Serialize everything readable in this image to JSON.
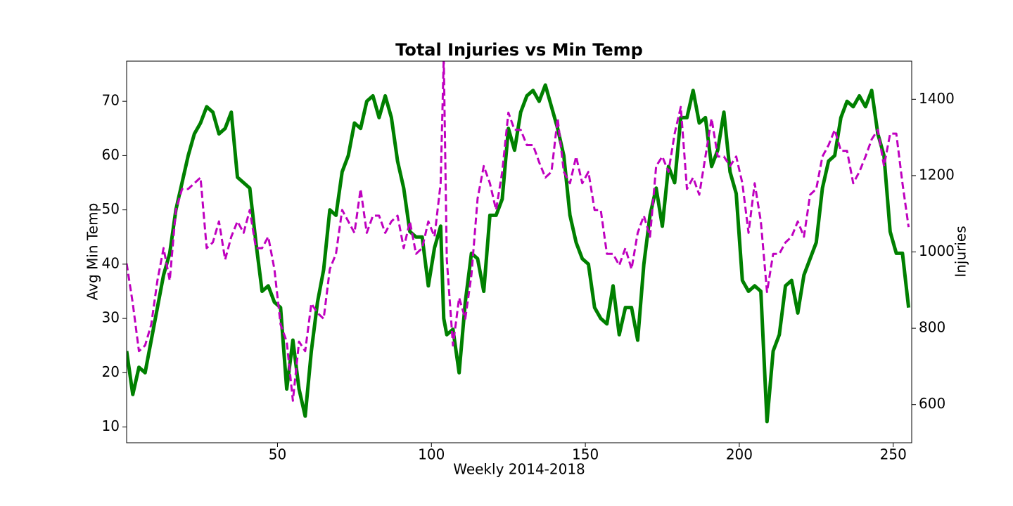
{
  "chart_data": {
    "type": "line",
    "title": "Total Injuries vs Min Temp",
    "x_label": "Weekly 2014-2018",
    "y_label": "Avg Min Temp",
    "y2_label": "Injuries",
    "x": [
      1,
      3,
      5,
      7,
      9,
      11,
      13,
      15,
      17,
      19,
      21,
      23,
      25,
      27,
      29,
      31,
      33,
      35,
      37,
      39,
      41,
      43,
      45,
      47,
      49,
      51,
      53,
      55,
      57,
      59,
      61,
      63,
      65,
      67,
      69,
      71,
      73,
      75,
      77,
      79,
      81,
      83,
      85,
      87,
      89,
      91,
      93,
      95,
      97,
      99,
      101,
      103,
      104,
      105,
      107,
      109,
      111,
      113,
      115,
      117,
      119,
      121,
      123,
      125,
      127,
      129,
      131,
      133,
      135,
      137,
      139,
      141,
      143,
      145,
      147,
      149,
      151,
      153,
      155,
      157,
      159,
      161,
      163,
      165,
      167,
      169,
      171,
      173,
      175,
      177,
      179,
      181,
      183,
      185,
      187,
      189,
      191,
      193,
      195,
      197,
      199,
      201,
      203,
      205,
      207,
      209,
      211,
      213,
      215,
      217,
      219,
      221,
      223,
      225,
      227,
      229,
      231,
      233,
      235,
      237,
      239,
      241,
      243,
      245,
      247,
      249,
      251,
      253,
      255
    ],
    "series": [
      {
        "color": "#008000",
        "dash": false,
        "values": [
          24,
          16,
          21,
          20,
          26,
          32,
          38,
          42,
          50,
          55,
          60,
          64,
          66,
          69,
          68,
          64,
          65,
          68,
          56,
          55,
          54,
          44,
          35,
          36,
          33,
          32,
          17,
          26,
          17,
          12,
          24,
          33,
          39,
          50,
          49,
          57,
          60,
          66,
          65,
          70,
          71,
          67,
          71,
          67,
          59,
          54,
          46,
          45,
          45,
          36,
          43,
          47,
          30,
          27,
          28,
          20,
          33,
          42,
          41,
          35,
          49,
          49,
          52,
          65,
          61,
          68,
          71,
          72,
          70,
          73,
          69,
          65,
          60,
          49,
          44,
          41,
          40,
          32,
          30,
          29,
          36,
          27,
          32,
          32,
          26,
          40,
          49,
          54,
          47,
          58,
          55,
          67,
          67,
          72,
          66,
          67,
          58,
          61,
          68,
          57,
          53,
          37,
          35,
          36,
          35,
          11,
          24,
          27,
          36,
          37,
          31,
          38,
          41,
          44,
          54,
          59,
          60,
          67,
          70,
          69,
          71,
          69,
          72,
          64,
          60,
          46,
          42,
          42,
          32
        ]
      },
      {
        "color": "#bf00bf",
        "dash": true,
        "axis": "y2",
        "values": [
          970,
          865,
          740,
          755,
          810,
          925,
          1010,
          925,
          1110,
          1165,
          1165,
          1180,
          1195,
          1010,
          1025,
          1080,
          980,
          1040,
          1080,
          1050,
          1110,
          1010,
          1010,
          1040,
          955,
          810,
          765,
          610,
          765,
          740,
          865,
          840,
          825,
          955,
          995,
          1110,
          1080,
          1050,
          1165,
          1050,
          1095,
          1095,
          1050,
          1080,
          1095,
          1010,
          1080,
          995,
          1010,
          1080,
          1040,
          1180,
          1510,
          980,
          755,
          880,
          825,
          940,
          1140,
          1225,
          1180,
          1110,
          1210,
          1365,
          1320,
          1320,
          1280,
          1280,
          1235,
          1195,
          1210,
          1350,
          1210,
          1180,
          1250,
          1180,
          1210,
          1110,
          1110,
          995,
          995,
          965,
          1010,
          955,
          1050,
          1095,
          1040,
          1225,
          1250,
          1210,
          1310,
          1380,
          1165,
          1195,
          1150,
          1250,
          1350,
          1250,
          1250,
          1225,
          1250,
          1180,
          1050,
          1180,
          1080,
          895,
          995,
          995,
          1025,
          1040,
          1080,
          1040,
          1150,
          1165,
          1250,
          1280,
          1320,
          1265,
          1265,
          1180,
          1210,
          1250,
          1295,
          1320,
          1225,
          1310,
          1310,
          1180,
          1065
        ]
      }
    ],
    "xlim": [
      1,
      256
    ],
    "xticks": [
      50,
      100,
      150,
      200,
      250
    ],
    "ylim": [
      7.1,
      77.4
    ],
    "yticks": [
      10,
      20,
      30,
      40,
      50,
      60,
      70
    ],
    "y2lim": [
      500,
      1500
    ],
    "y2ticks": [
      600,
      800,
      1000,
      1200,
      1400
    ],
    "grid": false
  }
}
